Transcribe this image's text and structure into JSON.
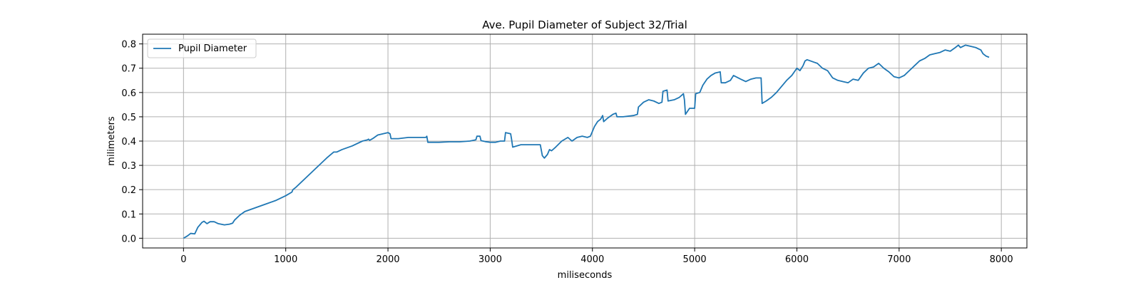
{
  "chart_data": {
    "type": "line",
    "title": "Ave. Pupil Diameter of Subject 32/Trial",
    "xlabel": "miliseconds",
    "ylabel": "milimeters",
    "xlim": [
      -400,
      8250
    ],
    "ylim": [
      -0.04,
      0.84
    ],
    "xticks": [
      0,
      1000,
      2000,
      3000,
      4000,
      5000,
      6000,
      7000,
      8000
    ],
    "yticks": [
      0.0,
      0.1,
      0.2,
      0.3,
      0.4,
      0.5,
      0.6,
      0.7,
      0.8
    ],
    "grid": true,
    "legend": "top-left",
    "series": [
      {
        "name": "Pupil Diameter",
        "color": "#1f77b4",
        "points": [
          [
            0,
            0.0
          ],
          [
            40,
            0.01
          ],
          [
            70,
            0.02
          ],
          [
            110,
            0.018
          ],
          [
            140,
            0.045
          ],
          [
            180,
            0.065
          ],
          [
            200,
            0.07
          ],
          [
            230,
            0.06
          ],
          [
            260,
            0.068
          ],
          [
            300,
            0.068
          ],
          [
            340,
            0.06
          ],
          [
            400,
            0.055
          ],
          [
            450,
            0.058
          ],
          [
            480,
            0.062
          ],
          [
            500,
            0.075
          ],
          [
            550,
            0.095
          ],
          [
            600,
            0.11
          ],
          [
            700,
            0.125
          ],
          [
            800,
            0.14
          ],
          [
            900,
            0.155
          ],
          [
            1000,
            0.175
          ],
          [
            1060,
            0.19
          ],
          [
            1070,
            0.2
          ],
          [
            1100,
            0.21
          ],
          [
            1200,
            0.25
          ],
          [
            1300,
            0.29
          ],
          [
            1400,
            0.33
          ],
          [
            1470,
            0.355
          ],
          [
            1500,
            0.355
          ],
          [
            1550,
            0.365
          ],
          [
            1650,
            0.38
          ],
          [
            1750,
            0.4
          ],
          [
            1800,
            0.405
          ],
          [
            1810,
            0.408
          ],
          [
            1820,
            0.403
          ],
          [
            1850,
            0.41
          ],
          [
            1900,
            0.425
          ],
          [
            2000,
            0.435
          ],
          [
            2020,
            0.43
          ],
          [
            2030,
            0.41
          ],
          [
            2100,
            0.41
          ],
          [
            2200,
            0.415
          ],
          [
            2300,
            0.415
          ],
          [
            2370,
            0.415
          ],
          [
            2380,
            0.42
          ],
          [
            2390,
            0.395
          ],
          [
            2500,
            0.395
          ],
          [
            2600,
            0.397
          ],
          [
            2700,
            0.397
          ],
          [
            2800,
            0.4
          ],
          [
            2860,
            0.405
          ],
          [
            2870,
            0.42
          ],
          [
            2900,
            0.42
          ],
          [
            2910,
            0.402
          ],
          [
            2950,
            0.398
          ],
          [
            3000,
            0.395
          ],
          [
            3050,
            0.395
          ],
          [
            3100,
            0.4
          ],
          [
            3140,
            0.4
          ],
          [
            3150,
            0.435
          ],
          [
            3200,
            0.43
          ],
          [
            3210,
            0.405
          ],
          [
            3220,
            0.375
          ],
          [
            3300,
            0.385
          ],
          [
            3400,
            0.385
          ],
          [
            3490,
            0.385
          ],
          [
            3510,
            0.34
          ],
          [
            3530,
            0.33
          ],
          [
            3560,
            0.345
          ],
          [
            3580,
            0.365
          ],
          [
            3600,
            0.36
          ],
          [
            3640,
            0.375
          ],
          [
            3700,
            0.4
          ],
          [
            3760,
            0.415
          ],
          [
            3800,
            0.4
          ],
          [
            3850,
            0.415
          ],
          [
            3900,
            0.42
          ],
          [
            3950,
            0.415
          ],
          [
            3980,
            0.42
          ],
          [
            4020,
            0.46
          ],
          [
            4050,
            0.48
          ],
          [
            4080,
            0.49
          ],
          [
            4100,
            0.505
          ],
          [
            4110,
            0.48
          ],
          [
            4150,
            0.495
          ],
          [
            4200,
            0.51
          ],
          [
            4230,
            0.515
          ],
          [
            4240,
            0.5
          ],
          [
            4300,
            0.5
          ],
          [
            4400,
            0.505
          ],
          [
            4440,
            0.51
          ],
          [
            4450,
            0.54
          ],
          [
            4500,
            0.56
          ],
          [
            4550,
            0.57
          ],
          [
            4600,
            0.565
          ],
          [
            4650,
            0.555
          ],
          [
            4680,
            0.56
          ],
          [
            4690,
            0.605
          ],
          [
            4730,
            0.61
          ],
          [
            4740,
            0.565
          ],
          [
            4800,
            0.57
          ],
          [
            4850,
            0.58
          ],
          [
            4890,
            0.595
          ],
          [
            4900,
            0.57
          ],
          [
            4910,
            0.51
          ],
          [
            4950,
            0.535
          ],
          [
            5000,
            0.535
          ],
          [
            5010,
            0.595
          ],
          [
            5050,
            0.6
          ],
          [
            5080,
            0.63
          ],
          [
            5120,
            0.655
          ],
          [
            5160,
            0.67
          ],
          [
            5200,
            0.68
          ],
          [
            5250,
            0.685
          ],
          [
            5260,
            0.64
          ],
          [
            5300,
            0.64
          ],
          [
            5350,
            0.65
          ],
          [
            5380,
            0.67
          ],
          [
            5450,
            0.655
          ],
          [
            5500,
            0.645
          ],
          [
            5550,
            0.655
          ],
          [
            5600,
            0.66
          ],
          [
            5650,
            0.66
          ],
          [
            5660,
            0.555
          ],
          [
            5700,
            0.565
          ],
          [
            5750,
            0.58
          ],
          [
            5800,
            0.6
          ],
          [
            5850,
            0.625
          ],
          [
            5900,
            0.65
          ],
          [
            5950,
            0.67
          ],
          [
            6000,
            0.7
          ],
          [
            6030,
            0.69
          ],
          [
            6060,
            0.71
          ],
          [
            6080,
            0.73
          ],
          [
            6100,
            0.735
          ],
          [
            6200,
            0.72
          ],
          [
            6250,
            0.7
          ],
          [
            6300,
            0.69
          ],
          [
            6350,
            0.66
          ],
          [
            6400,
            0.65
          ],
          [
            6450,
            0.645
          ],
          [
            6500,
            0.64
          ],
          [
            6550,
            0.655
          ],
          [
            6600,
            0.65
          ],
          [
            6650,
            0.68
          ],
          [
            6700,
            0.7
          ],
          [
            6750,
            0.705
          ],
          [
            6800,
            0.72
          ],
          [
            6850,
            0.7
          ],
          [
            6900,
            0.685
          ],
          [
            6950,
            0.665
          ],
          [
            7000,
            0.66
          ],
          [
            7050,
            0.67
          ],
          [
            7100,
            0.69
          ],
          [
            7150,
            0.71
          ],
          [
            7200,
            0.73
          ],
          [
            7250,
            0.74
          ],
          [
            7300,
            0.755
          ],
          [
            7350,
            0.76
          ],
          [
            7400,
            0.765
          ],
          [
            7450,
            0.775
          ],
          [
            7500,
            0.77
          ],
          [
            7550,
            0.785
          ],
          [
            7580,
            0.795
          ],
          [
            7600,
            0.785
          ],
          [
            7650,
            0.795
          ],
          [
            7700,
            0.79
          ],
          [
            7750,
            0.785
          ],
          [
            7800,
            0.775
          ],
          [
            7820,
            0.76
          ],
          [
            7850,
            0.75
          ],
          [
            7880,
            0.745
          ]
        ]
      }
    ]
  }
}
